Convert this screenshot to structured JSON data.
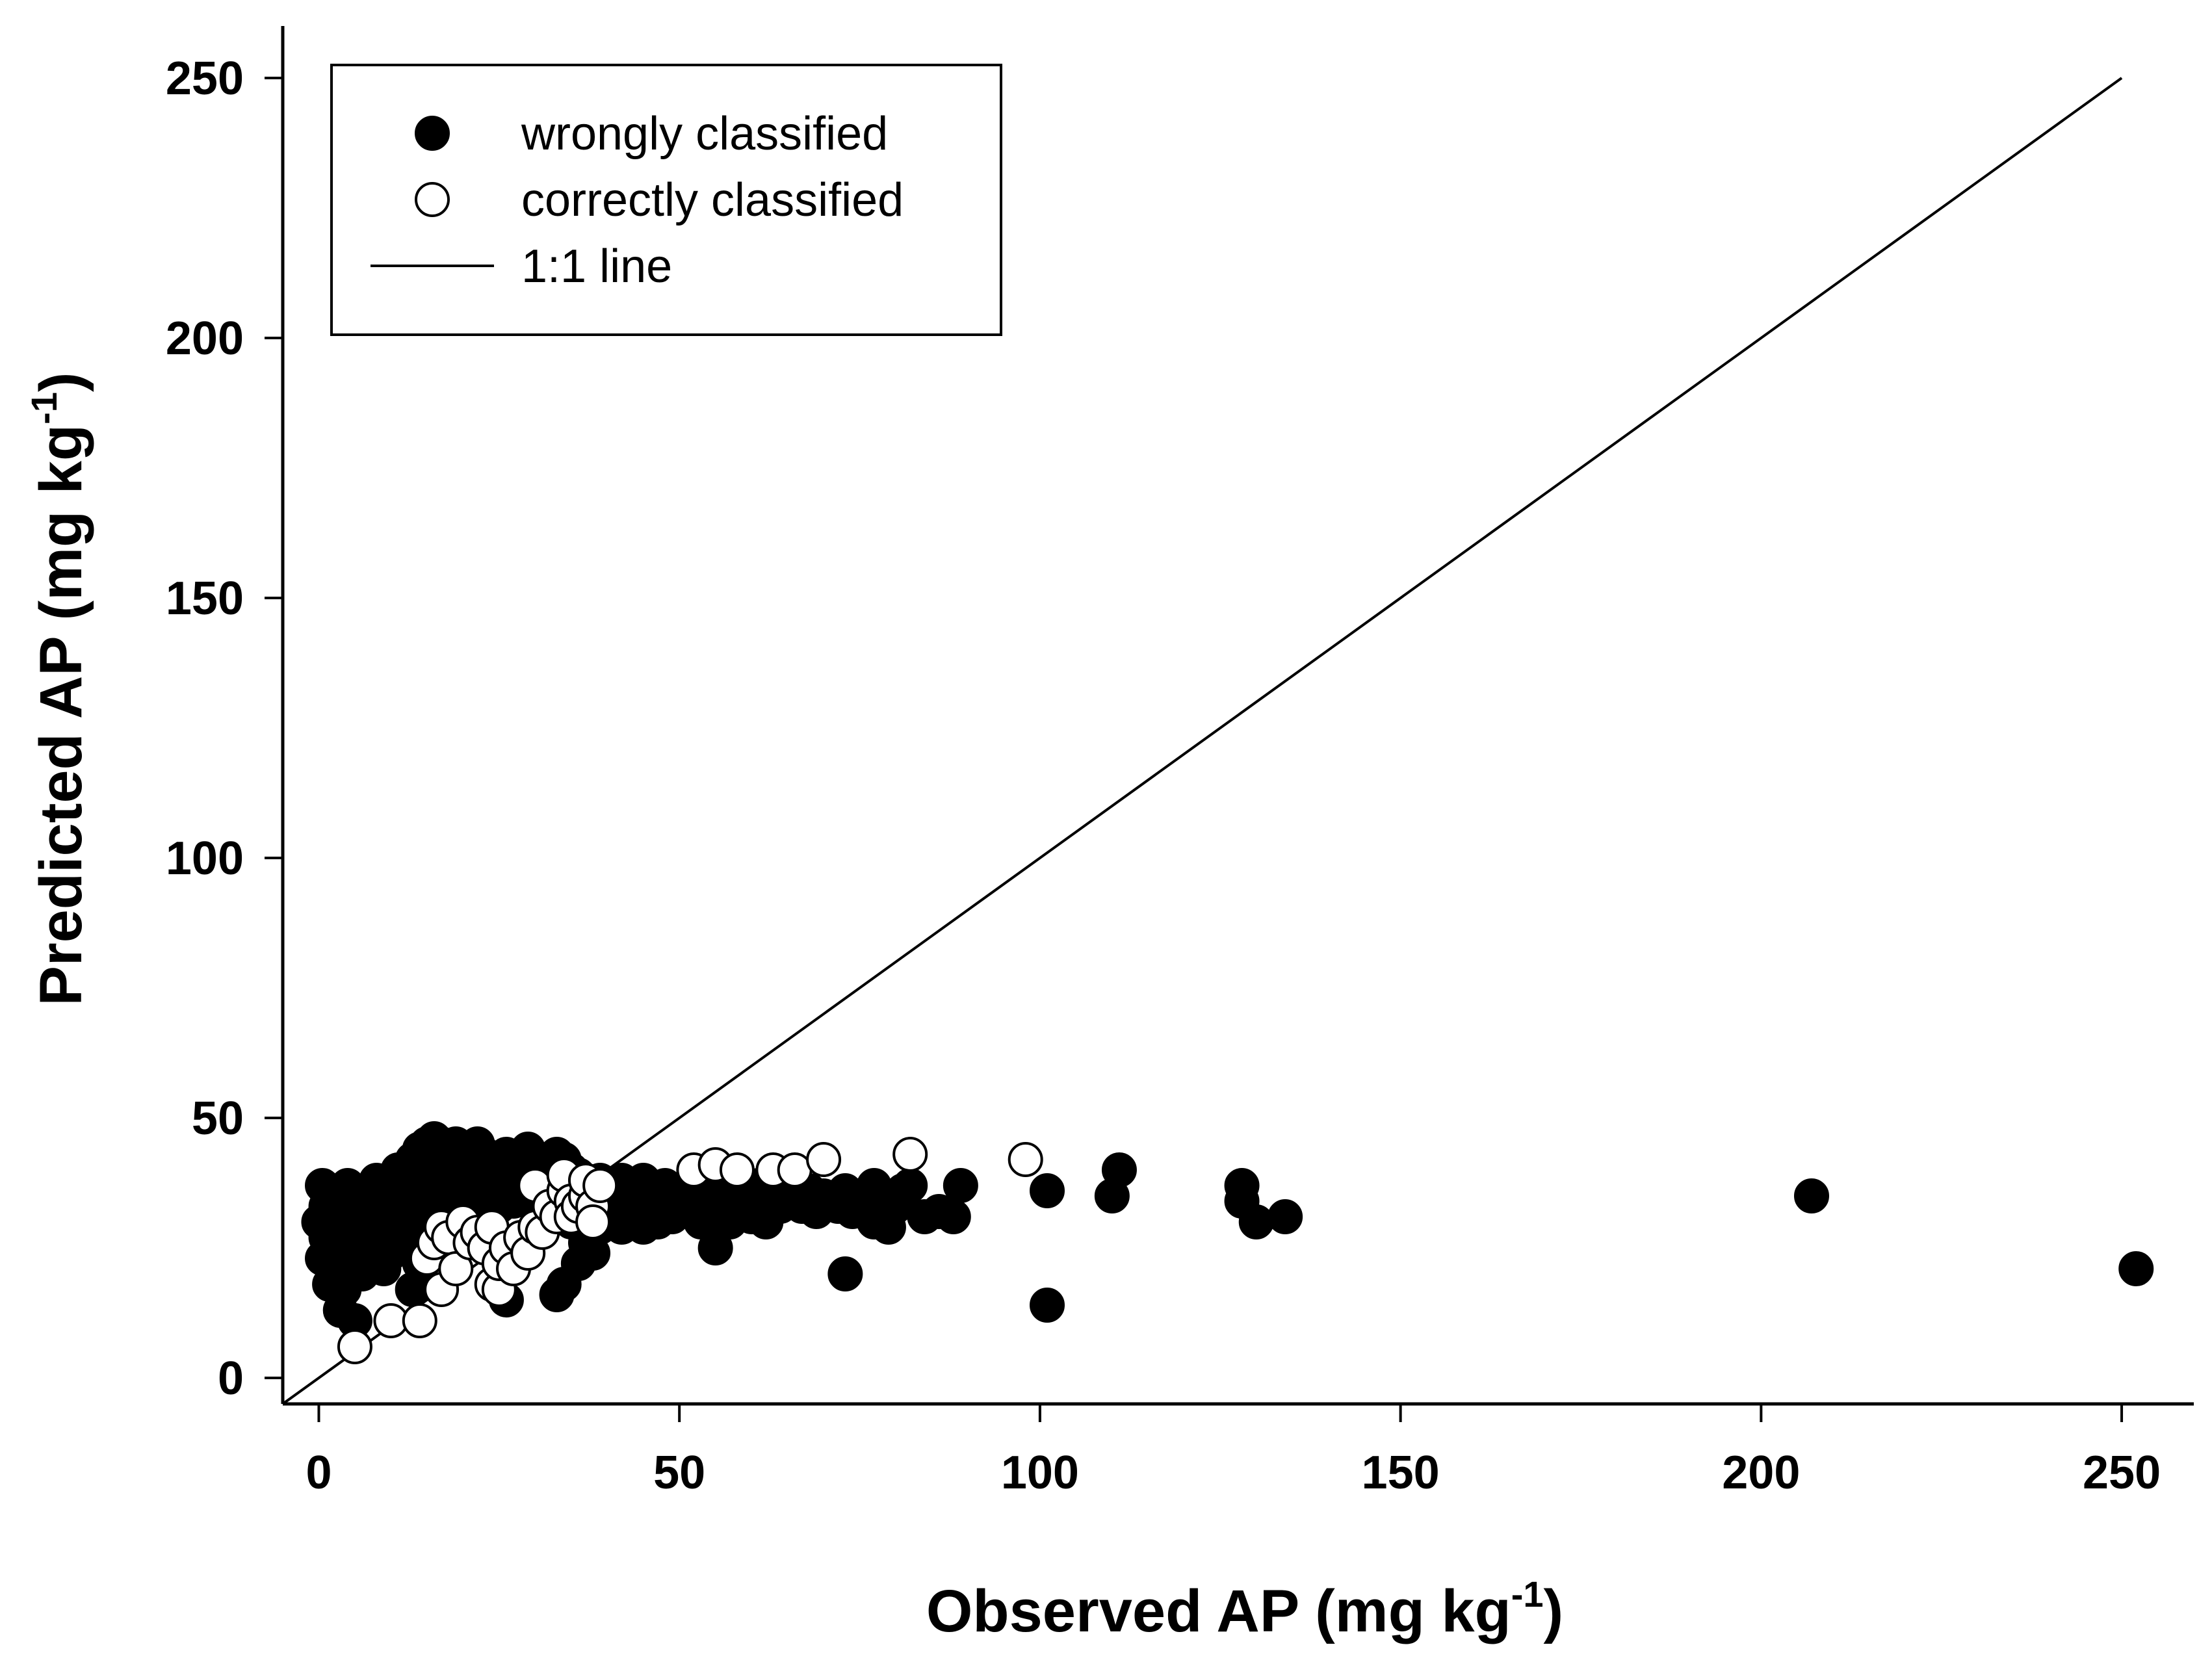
{
  "chart_data": {
    "type": "scatter",
    "title": "",
    "xlabel": {
      "main": "Observed AP (mg kg",
      "sup": "-1",
      "close": ")"
    },
    "ylabel": {
      "main": "Predicted AP (mg kg",
      "sup": "-1",
      "close": ")"
    },
    "xlim": [
      -5,
      260
    ],
    "ylim": [
      -5,
      260
    ],
    "xticks": [
      0,
      50,
      100,
      150,
      200,
      250
    ],
    "yticks": [
      0,
      50,
      100,
      150,
      200,
      250
    ],
    "legend": {
      "position": "top-left",
      "entries": [
        {
          "key": "wrong",
          "label": "wrongly classified",
          "marker": "filled-circle"
        },
        {
          "key": "correct",
          "label": "correctly classified",
          "marker": "open-circle"
        },
        {
          "key": "line",
          "label": "1:1 line",
          "marker": "line"
        }
      ]
    },
    "reference_line": {
      "name": "1:1 line",
      "from": [
        -5,
        -5
      ],
      "to": [
        250,
        250
      ]
    },
    "series": [
      {
        "name": "wrongly classified",
        "style": "filled",
        "color": "#000000",
        "points": [
          [
            0,
            30
          ],
          [
            0.5,
            37
          ],
          [
            0.5,
            23
          ],
          [
            1,
            33
          ],
          [
            1,
            27
          ],
          [
            1.5,
            18
          ],
          [
            2,
            35
          ],
          [
            2,
            25
          ],
          [
            2.5,
            31
          ],
          [
            3,
            13
          ],
          [
            3,
            29
          ],
          [
            3.5,
            17
          ],
          [
            4,
            37
          ],
          [
            4,
            32
          ],
          [
            4,
            22
          ],
          [
            5,
            11
          ],
          [
            5,
            28
          ],
          [
            5,
            35
          ],
          [
            6,
            33
          ],
          [
            6,
            26
          ],
          [
            6,
            20
          ],
          [
            7,
            36
          ],
          [
            7,
            30
          ],
          [
            7,
            23
          ],
          [
            8,
            38
          ],
          [
            8,
            34
          ],
          [
            8,
            27
          ],
          [
            9,
            31
          ],
          [
            9,
            21
          ],
          [
            10,
            36
          ],
          [
            10,
            32
          ],
          [
            10,
            24
          ],
          [
            11,
            40
          ],
          [
            11,
            34
          ],
          [
            11,
            28
          ],
          [
            12,
            38
          ],
          [
            12,
            33
          ],
          [
            12,
            25
          ],
          [
            13,
            42
          ],
          [
            13,
            36
          ],
          [
            13,
            30
          ],
          [
            13,
            17
          ],
          [
            14,
            44
          ],
          [
            14,
            39
          ],
          [
            14,
            34
          ],
          [
            14,
            22
          ],
          [
            15,
            45
          ],
          [
            15,
            41
          ],
          [
            15,
            36
          ],
          [
            15,
            31
          ],
          [
            16,
            46
          ],
          [
            16,
            43
          ],
          [
            16,
            38
          ],
          [
            16,
            33
          ],
          [
            16,
            25
          ],
          [
            17,
            45
          ],
          [
            17,
            41
          ],
          [
            17,
            36
          ],
          [
            17,
            30
          ],
          [
            18,
            44
          ],
          [
            18,
            40
          ],
          [
            18,
            35
          ],
          [
            18,
            32
          ],
          [
            19,
            45
          ],
          [
            19,
            42
          ],
          [
            19,
            38
          ],
          [
            19,
            33
          ],
          [
            20,
            43
          ],
          [
            20,
            39
          ],
          [
            20,
            35
          ],
          [
            20,
            31
          ],
          [
            21,
            44
          ],
          [
            21,
            41
          ],
          [
            21,
            37
          ],
          [
            21,
            32
          ],
          [
            22,
            45
          ],
          [
            22,
            42
          ],
          [
            22,
            38
          ],
          [
            22,
            34
          ],
          [
            23,
            43
          ],
          [
            23,
            40
          ],
          [
            23,
            36
          ],
          [
            23,
            31
          ],
          [
            24,
            42
          ],
          [
            24,
            39
          ],
          [
            24,
            35
          ],
          [
            25,
            41
          ],
          [
            25,
            37
          ],
          [
            25,
            33
          ],
          [
            26,
            43
          ],
          [
            26,
            39
          ],
          [
            26,
            35
          ],
          [
            26,
            15
          ],
          [
            27,
            42
          ],
          [
            27,
            38
          ],
          [
            27,
            34
          ],
          [
            28,
            41
          ],
          [
            28,
            37
          ],
          [
            29,
            44
          ],
          [
            29,
            40
          ],
          [
            29,
            36
          ],
          [
            30,
            42
          ],
          [
            30,
            38
          ],
          [
            30,
            33
          ],
          [
            31,
            40
          ],
          [
            31,
            36
          ],
          [
            32,
            41
          ],
          [
            32,
            37
          ],
          [
            33,
            43
          ],
          [
            33,
            39
          ],
          [
            33,
            16
          ],
          [
            34,
            42
          ],
          [
            34,
            38
          ],
          [
            34,
            34
          ],
          [
            34,
            18
          ],
          [
            35,
            40
          ],
          [
            35,
            36
          ],
          [
            35,
            30
          ],
          [
            36,
            39
          ],
          [
            36,
            35
          ],
          [
            36,
            22
          ],
          [
            37,
            38
          ],
          [
            37,
            33
          ],
          [
            37,
            26
          ],
          [
            38,
            37
          ],
          [
            38,
            32
          ],
          [
            38,
            24
          ],
          [
            39,
            38
          ],
          [
            39,
            34
          ],
          [
            39,
            29
          ],
          [
            40,
            37
          ],
          [
            40,
            33
          ],
          [
            41,
            36
          ],
          [
            41,
            31
          ],
          [
            42,
            38
          ],
          [
            42,
            34
          ],
          [
            42,
            29
          ],
          [
            43,
            37
          ],
          [
            43,
            33
          ],
          [
            44,
            36
          ],
          [
            44,
            31
          ],
          [
            45,
            38
          ],
          [
            45,
            34
          ],
          [
            45,
            29
          ],
          [
            46,
            36
          ],
          [
            46,
            32
          ],
          [
            47,
            35
          ],
          [
            47,
            30
          ],
          [
            48,
            37
          ],
          [
            48,
            33
          ],
          [
            49,
            35
          ],
          [
            49,
            31
          ],
          [
            50,
            36
          ],
          [
            50,
            32
          ],
          [
            51,
            34
          ],
          [
            52,
            37
          ],
          [
            52,
            33
          ],
          [
            53,
            35
          ],
          [
            53,
            30
          ],
          [
            54,
            36
          ],
          [
            54,
            32
          ],
          [
            55,
            34
          ],
          [
            55,
            25
          ],
          [
            56,
            37
          ],
          [
            56,
            33
          ],
          [
            57,
            35
          ],
          [
            57,
            30
          ],
          [
            58,
            36
          ],
          [
            58,
            32
          ],
          [
            59,
            34
          ],
          [
            60,
            35
          ],
          [
            60,
            31
          ],
          [
            61,
            37
          ],
          [
            61,
            33
          ],
          [
            62,
            34
          ],
          [
            62,
            30
          ],
          [
            63,
            36
          ],
          [
            64,
            33
          ],
          [
            65,
            35
          ],
          [
            66,
            34
          ],
          [
            67,
            33
          ],
          [
            68,
            36
          ],
          [
            69,
            32
          ],
          [
            70,
            35
          ],
          [
            71,
            34
          ],
          [
            72,
            33
          ],
          [
            73,
            36
          ],
          [
            73,
            20
          ],
          [
            74,
            32
          ],
          [
            75,
            35
          ],
          [
            76,
            33
          ],
          [
            77,
            37
          ],
          [
            77,
            30
          ],
          [
            78,
            34
          ],
          [
            79,
            29
          ],
          [
            80,
            33
          ],
          [
            81,
            36
          ],
          [
            82,
            37
          ],
          [
            84,
            31
          ],
          [
            86,
            32
          ],
          [
            88,
            31
          ],
          [
            89,
            37
          ],
          [
            101,
            36
          ],
          [
            101,
            14
          ],
          [
            110,
            35
          ],
          [
            111,
            40
          ],
          [
            128,
            37
          ],
          [
            128,
            34
          ],
          [
            130,
            30
          ],
          [
            134,
            31
          ],
          [
            207,
            35
          ],
          [
            252,
            21
          ]
        ]
      },
      {
        "name": "correctly classified",
        "style": "open",
        "color": "#ffffff",
        "points": [
          [
            5,
            6
          ],
          [
            10,
            11
          ],
          [
            14,
            11
          ],
          [
            15,
            23
          ],
          [
            16,
            26
          ],
          [
            17,
            29
          ],
          [
            17,
            17
          ],
          [
            18,
            27
          ],
          [
            19,
            21
          ],
          [
            20,
            30
          ],
          [
            21,
            26
          ],
          [
            22,
            28
          ],
          [
            23,
            25
          ],
          [
            24,
            29
          ],
          [
            24,
            18
          ],
          [
            25,
            17
          ],
          [
            25,
            22
          ],
          [
            26,
            25
          ],
          [
            27,
            21
          ],
          [
            28,
            27
          ],
          [
            29,
            24
          ],
          [
            30,
            29
          ],
          [
            30,
            37
          ],
          [
            31,
            28
          ],
          [
            32,
            33
          ],
          [
            33,
            31
          ],
          [
            34,
            36
          ],
          [
            34,
            39
          ],
          [
            35,
            34
          ],
          [
            35,
            31
          ],
          [
            36,
            33
          ],
          [
            37,
            35
          ],
          [
            37,
            38
          ],
          [
            38,
            33
          ],
          [
            38,
            30
          ],
          [
            39,
            37
          ],
          [
            52,
            40
          ],
          [
            55,
            41
          ],
          [
            58,
            40
          ],
          [
            63,
            40
          ],
          [
            66,
            40
          ],
          [
            70,
            42
          ],
          [
            82,
            43
          ],
          [
            98,
            42
          ]
        ]
      }
    ]
  }
}
